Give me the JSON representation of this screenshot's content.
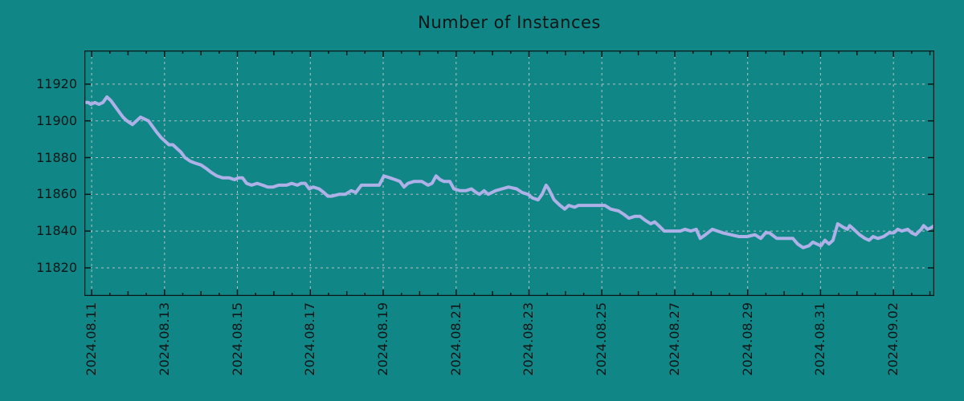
{
  "chart_data": {
    "type": "line",
    "title": "Number of Instances",
    "xlabel": "",
    "ylabel": "",
    "legend": "none",
    "grid": "dashed",
    "x_unit": "days since 2024.08.11",
    "xlim_days": [
      -0.2,
      23.12
    ],
    "ylim": [
      11804.7,
      11938.3
    ],
    "y_ticks": [
      11820,
      11840,
      11860,
      11880,
      11900,
      11920
    ],
    "y_tick_labels": [
      "11820",
      "11840",
      "11860",
      "11880",
      "11900",
      "11920"
    ],
    "x_tick_days": [
      0,
      2,
      4,
      6,
      8,
      10,
      12,
      14,
      16,
      18,
      20,
      22
    ],
    "x_tick_labels": [
      "2024.08.11",
      "2024.08.13",
      "2024.08.15",
      "2024.08.17",
      "2024.08.19",
      "2024.08.21",
      "2024.08.23",
      "2024.08.25",
      "2024.08.27",
      "2024.08.29",
      "2024.08.31",
      "2024.09.02"
    ],
    "minor_tick_step_days": 0.5,
    "colors": {
      "background": "#118686",
      "line": "#aeb1e8",
      "grid": "#cccccc",
      "axis": "#0c1616",
      "text": "#0c1616"
    },
    "series": [
      {
        "name": "Number of Instances",
        "points": [
          [
            -0.2,
            11910
          ],
          [
            -0.09,
            11910
          ],
          [
            -0.02,
            11909
          ],
          [
            0.09,
            11910
          ],
          [
            0.2,
            11909
          ],
          [
            0.31,
            11910
          ],
          [
            0.42,
            11913
          ],
          [
            0.53,
            11911
          ],
          [
            0.64,
            11908
          ],
          [
            0.75,
            11905
          ],
          [
            0.86,
            11902
          ],
          [
            0.97,
            11900
          ],
          [
            1.12,
            11898
          ],
          [
            1.23,
            11900
          ],
          [
            1.34,
            11902
          ],
          [
            1.45,
            11901
          ],
          [
            1.56,
            11900
          ],
          [
            1.67,
            11897
          ],
          [
            1.78,
            11894
          ],
          [
            1.9,
            11891
          ],
          [
            2.01,
            11889
          ],
          [
            2.12,
            11887
          ],
          [
            2.23,
            11887
          ],
          [
            2.34,
            11885
          ],
          [
            2.45,
            11883
          ],
          [
            2.56,
            11880
          ],
          [
            2.71,
            11878
          ],
          [
            2.84,
            11877
          ],
          [
            3.0,
            11876
          ],
          [
            3.15,
            11874
          ],
          [
            3.28,
            11872
          ],
          [
            3.44,
            11870
          ],
          [
            3.59,
            11869
          ],
          [
            3.77,
            11869
          ],
          [
            3.92,
            11868
          ],
          [
            4.03,
            11869
          ],
          [
            4.14,
            11869
          ],
          [
            4.25,
            11866
          ],
          [
            4.39,
            11865
          ],
          [
            4.54,
            11866
          ],
          [
            4.69,
            11865
          ],
          [
            4.83,
            11864
          ],
          [
            4.98,
            11864
          ],
          [
            5.13,
            11865
          ],
          [
            5.2,
            11865
          ],
          [
            5.35,
            11865
          ],
          [
            5.49,
            11866
          ],
          [
            5.64,
            11865
          ],
          [
            5.75,
            11866
          ],
          [
            5.86,
            11866
          ],
          [
            5.97,
            11863
          ],
          [
            6.08,
            11864
          ],
          [
            6.24,
            11863
          ],
          [
            6.37,
            11861
          ],
          [
            6.48,
            11859
          ],
          [
            6.59,
            11859
          ],
          [
            6.79,
            11860
          ],
          [
            6.96,
            11860
          ],
          [
            7.12,
            11862
          ],
          [
            7.25,
            11861
          ],
          [
            7.4,
            11865
          ],
          [
            7.56,
            11865
          ],
          [
            7.73,
            11865
          ],
          [
            7.89,
            11865
          ],
          [
            8.02,
            11870
          ],
          [
            8.18,
            11869
          ],
          [
            8.33,
            11868
          ],
          [
            8.46,
            11867
          ],
          [
            8.57,
            11864
          ],
          [
            8.68,
            11866
          ],
          [
            8.84,
            11867
          ],
          [
            9.06,
            11867
          ],
          [
            9.23,
            11865
          ],
          [
            9.34,
            11866
          ],
          [
            9.45,
            11870
          ],
          [
            9.56,
            11868
          ],
          [
            9.67,
            11867
          ],
          [
            9.83,
            11867
          ],
          [
            9.94,
            11863
          ],
          [
            10.11,
            11862
          ],
          [
            10.27,
            11862
          ],
          [
            10.42,
            11863
          ],
          [
            10.55,
            11861
          ],
          [
            10.64,
            11860
          ],
          [
            10.77,
            11862
          ],
          [
            10.88,
            11860
          ],
          [
            11.08,
            11862
          ],
          [
            11.26,
            11863
          ],
          [
            11.44,
            11864
          ],
          [
            11.66,
            11863
          ],
          [
            11.81,
            11861
          ],
          [
            11.97,
            11860
          ],
          [
            12.1,
            11858
          ],
          [
            12.25,
            11857
          ],
          [
            12.36,
            11860
          ],
          [
            12.47,
            11865
          ],
          [
            12.54,
            11863
          ],
          [
            12.69,
            11857
          ],
          [
            12.85,
            11854
          ],
          [
            12.98,
            11852
          ],
          [
            13.09,
            11854
          ],
          [
            13.25,
            11853
          ],
          [
            13.36,
            11854
          ],
          [
            13.58,
            11854
          ],
          [
            13.73,
            11854
          ],
          [
            13.95,
            11854
          ],
          [
            14.08,
            11854
          ],
          [
            14.24,
            11852
          ],
          [
            14.46,
            11851
          ],
          [
            14.61,
            11849
          ],
          [
            14.74,
            11847
          ],
          [
            14.9,
            11848
          ],
          [
            15.05,
            11848
          ],
          [
            15.18,
            11846
          ],
          [
            15.34,
            11844
          ],
          [
            15.45,
            11845
          ],
          [
            15.56,
            11843
          ],
          [
            15.71,
            11840
          ],
          [
            15.93,
            11840
          ],
          [
            16.15,
            11840
          ],
          [
            16.28,
            11841
          ],
          [
            16.44,
            11840
          ],
          [
            16.59,
            11841
          ],
          [
            16.7,
            11836
          ],
          [
            16.84,
            11838
          ],
          [
            17.03,
            11841
          ],
          [
            17.17,
            11840
          ],
          [
            17.32,
            11839
          ],
          [
            17.54,
            11838
          ],
          [
            17.76,
            11837
          ],
          [
            17.98,
            11837
          ],
          [
            18.2,
            11838
          ],
          [
            18.36,
            11836
          ],
          [
            18.49,
            11839
          ],
          [
            18.6,
            11839
          ],
          [
            18.8,
            11836
          ],
          [
            19.02,
            11836
          ],
          [
            19.24,
            11836
          ],
          [
            19.37,
            11833
          ],
          [
            19.52,
            11831
          ],
          [
            19.68,
            11832
          ],
          [
            19.79,
            11834
          ],
          [
            19.9,
            11833
          ],
          [
            20.01,
            11832
          ],
          [
            20.12,
            11835
          ],
          [
            20.23,
            11833
          ],
          [
            20.34,
            11835
          ],
          [
            20.47,
            11844
          ],
          [
            20.63,
            11842
          ],
          [
            20.74,
            11841
          ],
          [
            20.8,
            11843
          ],
          [
            20.91,
            11841
          ],
          [
            21.07,
            11838
          ],
          [
            21.22,
            11836
          ],
          [
            21.33,
            11835
          ],
          [
            21.44,
            11837
          ],
          [
            21.57,
            11836
          ],
          [
            21.73,
            11837
          ],
          [
            21.88,
            11839
          ],
          [
            22.01,
            11839
          ],
          [
            22.12,
            11841
          ],
          [
            22.23,
            11840
          ],
          [
            22.39,
            11841
          ],
          [
            22.5,
            11839
          ],
          [
            22.61,
            11838
          ],
          [
            22.76,
            11841
          ],
          [
            22.83,
            11843
          ],
          [
            22.94,
            11841
          ],
          [
            23.05,
            11842
          ],
          [
            23.12,
            11843
          ]
        ]
      }
    ]
  }
}
